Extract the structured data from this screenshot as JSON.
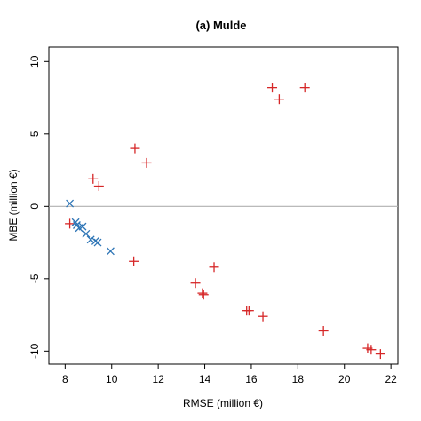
{
  "chart_data": {
    "type": "scatter",
    "title": "(a) Mulde",
    "xlabel": "RMSE (million €)",
    "ylabel": "MBE (million €)",
    "xlim": [
      7.3,
      22.3
    ],
    "ylim": [
      -10.9,
      11.0
    ],
    "xticks": [
      8,
      10,
      12,
      14,
      16,
      18,
      20,
      22
    ],
    "yticks": [
      -10,
      -5,
      0,
      5,
      10
    ],
    "reference_line_y": 0,
    "series": [
      {
        "marker": "plus",
        "color": "#d62728",
        "x": [
          8.2,
          9.2,
          9.45,
          11.0,
          11.5,
          10.95,
          13.6,
          13.9,
          13.95,
          14.4,
          15.8,
          15.9,
          16.5,
          16.9,
          17.2,
          18.3,
          19.1,
          21.0,
          21.15,
          21.55
        ],
        "y": [
          -1.2,
          1.9,
          1.4,
          4.0,
          3.0,
          -3.8,
          -5.3,
          -6.0,
          -6.1,
          -4.2,
          -7.2,
          -7.2,
          -7.6,
          8.2,
          7.4,
          8.2,
          -8.6,
          -9.8,
          -9.9,
          -10.2
        ]
      },
      {
        "marker": "cross",
        "color": "#2e75b6",
        "x": [
          8.2,
          8.45,
          8.5,
          8.6,
          8.75,
          8.9,
          9.1,
          9.3,
          9.4,
          9.95
        ],
        "y": [
          0.2,
          -1.1,
          -1.3,
          -1.5,
          -1.4,
          -1.9,
          -2.3,
          -2.4,
          -2.5,
          -3.1
        ]
      }
    ]
  }
}
